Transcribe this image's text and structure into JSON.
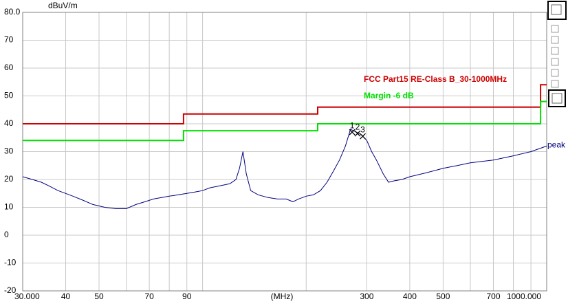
{
  "chart_data": {
    "type": "line",
    "y_label": "dBuV/m",
    "x_label": "(MHz)",
    "xlim": [
      30,
      1000
    ],
    "xscale": "log",
    "xticks": [
      {
        "value": 30,
        "label": "30.000"
      },
      40,
      50,
      70,
      90,
      300,
      400,
      500,
      700,
      {
        "value": 1000,
        "label": "1000.000"
      }
    ],
    "xminor": [
      60,
      80,
      100,
      200,
      600,
      800,
      900
    ],
    "ylim": [
      -20,
      80
    ],
    "yticks": [
      {
        "value": 80,
        "label": "80.0"
      },
      70,
      60,
      50,
      40,
      30,
      20,
      10,
      0,
      -10,
      -20
    ],
    "grid": true,
    "series": [
      {
        "name": "FCC Part15 RE-Class B_30-1000MHz",
        "color": "#cc0000",
        "x": [
          30,
          88,
          88,
          216,
          216,
          960,
          960,
          1000
        ],
        "values": [
          40,
          40,
          43.5,
          43.5,
          46,
          46,
          54,
          54
        ]
      },
      {
        "name": "Margin -6 dB",
        "color": "#00e000",
        "x": [
          30,
          88,
          88,
          216,
          216,
          960,
          960,
          1000
        ],
        "values": [
          34,
          34,
          37.5,
          37.5,
          40,
          40,
          48,
          48
        ]
      },
      {
        "name": "peak",
        "color": "#00007f",
        "x": [
          30,
          32,
          34,
          36,
          38,
          40,
          42,
          45,
          48,
          52,
          56,
          60,
          64,
          68,
          72,
          76,
          80,
          85,
          90,
          95,
          100,
          105,
          110,
          115,
          120,
          125,
          128,
          131,
          134,
          138,
          145,
          155,
          165,
          175,
          183,
          190,
          200,
          210,
          220,
          230,
          240,
          250,
          260,
          269,
          280,
          290,
          300,
          310,
          320,
          335,
          347,
          360,
          380,
          400,
          450,
          500,
          550,
          600,
          700,
          800,
          900,
          1000
        ],
        "values": [
          21,
          20,
          19,
          17.5,
          16,
          15,
          14,
          12.5,
          11,
          10,
          9.5,
          9.5,
          11,
          12,
          13,
          13.5,
          14,
          14.5,
          15,
          15.5,
          16,
          17,
          17.5,
          18,
          18.5,
          20,
          24,
          30,
          22,
          16,
          14.5,
          13.5,
          13,
          13,
          12,
          13,
          14,
          14.5,
          16,
          19,
          23,
          27,
          32,
          38,
          37,
          36,
          34,
          30,
          27,
          22,
          19,
          19.5,
          20,
          21,
          22.5,
          24,
          25,
          26,
          27,
          28.5,
          30,
          32
        ]
      }
    ],
    "markers": [
      {
        "label": "1",
        "x": 272,
        "y": 37
      },
      {
        "label": "2",
        "x": 282,
        "y": 36.5
      },
      {
        "label": "3",
        "x": 292,
        "y": 35.5
      }
    ]
  }
}
